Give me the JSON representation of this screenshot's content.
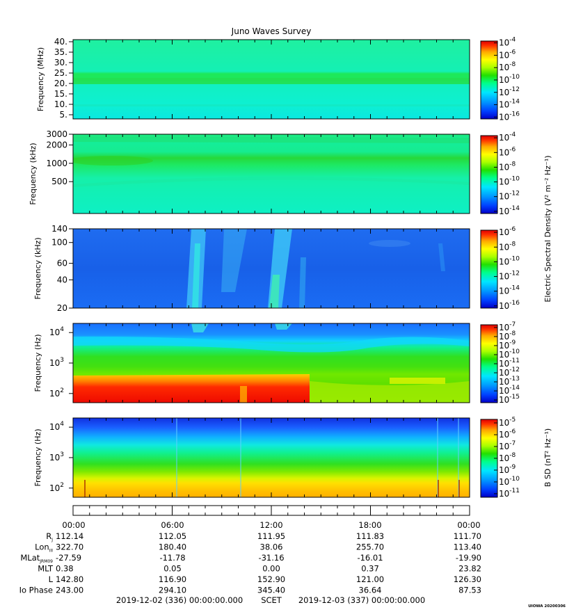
{
  "title": "Juno Waves Survey",
  "colors": {
    "scale": [
      "#0000cc",
      "#0044ff",
      "#0099ff",
      "#00e5ff",
      "#00ff88",
      "#22e000",
      "#aaff00",
      "#ffff00",
      "#ffaa00",
      "#ff3300",
      "#dd0000"
    ]
  },
  "chart_data": [
    {
      "type": "heatmap",
      "ylabel": "Frequency (MHz)",
      "y_ticks": [
        "40.",
        "35.",
        "30.",
        "25.",
        "20.",
        "15.",
        "10.",
        "5."
      ],
      "y_values": [
        40,
        35,
        30,
        25,
        20,
        15,
        10,
        5
      ],
      "ylim": [
        3,
        41
      ],
      "colorbar_ticks": [
        -4,
        -6,
        -8,
        -10,
        -12,
        -14,
        -16
      ],
      "colorbar_label": ""
    },
    {
      "type": "heatmap",
      "ylabel": "Frequency (kHz)",
      "y_ticks": [
        "3000",
        "2000",
        "1000",
        "500"
      ],
      "y_values": [
        3000,
        2000,
        1000,
        500
      ],
      "ylim": [
        150,
        3000
      ],
      "colorbar_ticks": [
        -4,
        -6,
        -8,
        -10,
        -12,
        -14
      ],
      "colorbar_label": "Electric Spectral Density (V² m⁻² Hz⁻¹)"
    },
    {
      "type": "heatmap",
      "ylabel": "Frequency (kHz)",
      "y_ticks": [
        "140",
        "100",
        "60",
        "40",
        "20"
      ],
      "y_values": [
        140,
        100,
        60,
        40,
        20
      ],
      "ylim": [
        20,
        140
      ],
      "colorbar_ticks": [
        -6,
        -8,
        -10,
        -12,
        -14,
        -16
      ],
      "colorbar_label": ""
    },
    {
      "type": "heatmap",
      "ylabel": "Frequency (Hz)",
      "y_ticks": [
        "4",
        "3",
        "2"
      ],
      "y_values": [
        10000,
        1000,
        100
      ],
      "ylim": [
        50,
        20000
      ],
      "colorbar_ticks": [
        -7,
        -8,
        -9,
        -10,
        -11,
        -12,
        -13,
        -14,
        -15
      ],
      "colorbar_label": ""
    },
    {
      "type": "heatmap",
      "ylabel": "Frequency (Hz)",
      "y_ticks": [
        "4",
        "3",
        "2"
      ],
      "y_values": [
        10000,
        1000,
        100
      ],
      "ylim": [
        50,
        20000
      ],
      "colorbar_ticks": [
        -5,
        -6,
        -7,
        -8,
        -9,
        -10,
        -11
      ],
      "colorbar_label": "B SD (nT² Hz⁻¹)"
    }
  ],
  "x_axis": {
    "tick_labels": [
      "00:00",
      "06:00",
      "12:00",
      "18:00",
      "00:00"
    ]
  },
  "ephemeris": [
    {
      "label": "R",
      "sub": "J",
      "values": [
        "112.14",
        "112.05",
        "111.95",
        "111.83",
        "111.70"
      ]
    },
    {
      "label": "Lon",
      "sub": "III",
      "values": [
        "322.70",
        "180.40",
        "38.06",
        "255.70",
        "113.40"
      ]
    },
    {
      "label": "MLat",
      "sub": "JRM09",
      "values": [
        "-27.59",
        "-11.78",
        "-31.16",
        "-16.01",
        "-19.90"
      ]
    },
    {
      "label": "MLT",
      "sub": "",
      "values": [
        "0.38",
        "0.05",
        "0.00",
        "0.37",
        "23.82"
      ]
    },
    {
      "label": "L",
      "sub": "",
      "values": [
        "142.80",
        "116.90",
        "152.90",
        "121.00",
        "126.30"
      ]
    },
    {
      "label": "Io Phase",
      "sub": "",
      "values": [
        "243.00",
        "294.10",
        "345.40",
        "36.64",
        "87.53"
      ]
    }
  ],
  "footer": {
    "start": "2019-12-02 (336) 00:00:00.000",
    "scet": "SCET",
    "end": "2019-12-03 (337) 00:00:00.000",
    "credit": "UIOWA 20200306"
  }
}
